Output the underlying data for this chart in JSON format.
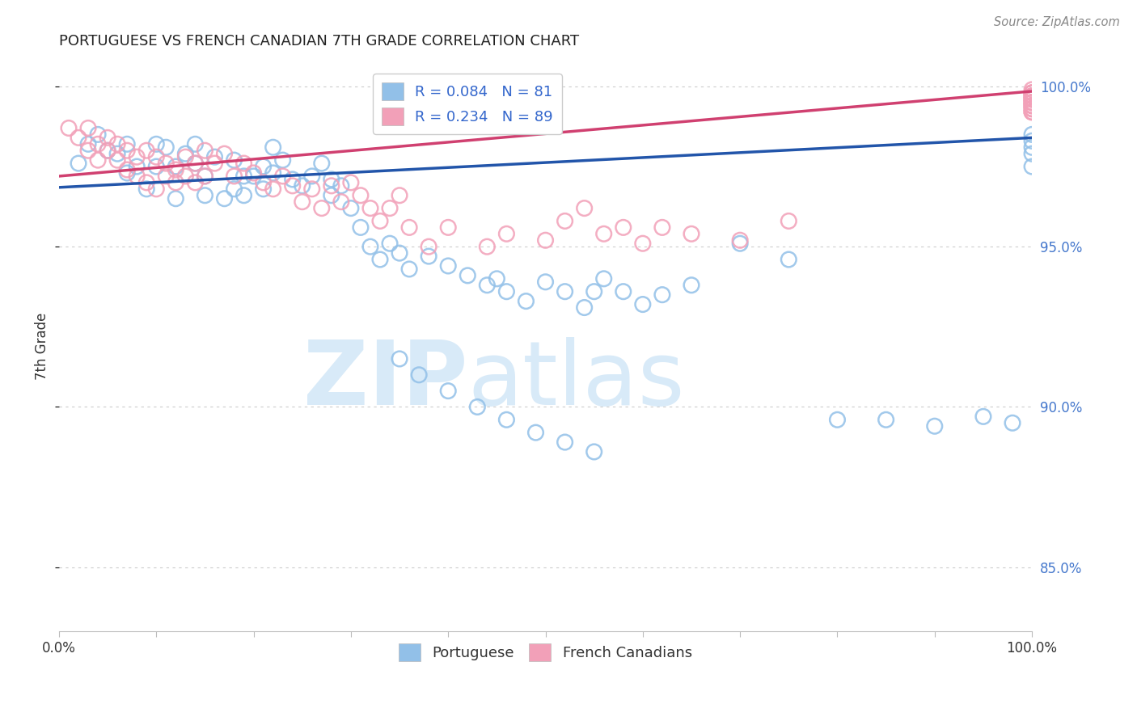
{
  "title": "PORTUGUESE VS FRENCH CANADIAN 7TH GRADE CORRELATION CHART",
  "source": "Source: ZipAtlas.com",
  "ylabel": "7th Grade",
  "xlim": [
    0.0,
    1.0
  ],
  "ylim": [
    0.83,
    1.008
  ],
  "legend_r_blue": "R = 0.084",
  "legend_n_blue": "N = 81",
  "legend_r_pink": "R = 0.234",
  "legend_n_pink": "N = 89",
  "blue_color": "#92C0E8",
  "pink_color": "#F2A0B8",
  "trend_blue": "#2255AA",
  "trend_pink": "#D04070",
  "watermark_zip": "ZIP",
  "watermark_atlas": "atlas",
  "watermark_color": "#D8EAF8",
  "blue_trend_x": [
    0.0,
    1.0
  ],
  "blue_trend_y": [
    0.9685,
    0.984
  ],
  "pink_trend_x": [
    0.0,
    1.0
  ],
  "pink_trend_y": [
    0.972,
    0.9985
  ],
  "blue_scatter_x": [
    0.02,
    0.03,
    0.04,
    0.05,
    0.06,
    0.07,
    0.07,
    0.08,
    0.09,
    0.1,
    0.1,
    0.11,
    0.12,
    0.12,
    0.13,
    0.14,
    0.14,
    0.15,
    0.15,
    0.16,
    0.17,
    0.18,
    0.18,
    0.19,
    0.19,
    0.2,
    0.21,
    0.21,
    0.22,
    0.22,
    0.23,
    0.24,
    0.25,
    0.26,
    0.27,
    0.28,
    0.28,
    0.29,
    0.3,
    0.31,
    0.32,
    0.33,
    0.34,
    0.35,
    0.36,
    0.38,
    0.4,
    0.42,
    0.44,
    0.45,
    0.46,
    0.48,
    0.5,
    0.52,
    0.54,
    0.55,
    0.56,
    0.58,
    0.6,
    0.62,
    0.65,
    0.7,
    0.75,
    0.8,
    0.85,
    0.9,
    0.95,
    0.98,
    1.0,
    1.0,
    1.0,
    1.0,
    1.0,
    0.35,
    0.37,
    0.4,
    0.43,
    0.46,
    0.49,
    0.52,
    0.55
  ],
  "blue_scatter_y": [
    0.976,
    0.982,
    0.985,
    0.98,
    0.979,
    0.973,
    0.982,
    0.975,
    0.968,
    0.975,
    0.982,
    0.981,
    0.965,
    0.975,
    0.979,
    0.976,
    0.982,
    0.972,
    0.966,
    0.978,
    0.965,
    0.968,
    0.977,
    0.972,
    0.966,
    0.972,
    0.975,
    0.968,
    0.973,
    0.981,
    0.977,
    0.971,
    0.969,
    0.972,
    0.976,
    0.971,
    0.966,
    0.969,
    0.962,
    0.956,
    0.95,
    0.946,
    0.951,
    0.948,
    0.943,
    0.947,
    0.944,
    0.941,
    0.938,
    0.94,
    0.936,
    0.933,
    0.939,
    0.936,
    0.931,
    0.936,
    0.94,
    0.936,
    0.932,
    0.935,
    0.938,
    0.951,
    0.946,
    0.896,
    0.896,
    0.894,
    0.897,
    0.895,
    0.975,
    0.979,
    0.981,
    0.983,
    0.985,
    0.915,
    0.91,
    0.905,
    0.9,
    0.896,
    0.892,
    0.889,
    0.886
  ],
  "pink_scatter_x": [
    0.01,
    0.02,
    0.03,
    0.03,
    0.04,
    0.04,
    0.05,
    0.05,
    0.06,
    0.06,
    0.07,
    0.07,
    0.08,
    0.08,
    0.09,
    0.09,
    0.1,
    0.1,
    0.11,
    0.11,
    0.12,
    0.12,
    0.13,
    0.13,
    0.14,
    0.14,
    0.15,
    0.15,
    0.16,
    0.17,
    0.18,
    0.19,
    0.2,
    0.21,
    0.22,
    0.23,
    0.24,
    0.25,
    0.26,
    0.27,
    0.28,
    0.29,
    0.3,
    0.31,
    0.32,
    0.33,
    0.34,
    0.35,
    0.36,
    0.38,
    0.4,
    0.44,
    0.46,
    0.5,
    0.52,
    0.54,
    0.56,
    0.58,
    0.6,
    0.62,
    0.65,
    0.7,
    0.75,
    1.0,
    1.0,
    1.0,
    1.0,
    1.0,
    1.0,
    1.0,
    1.0,
    1.0,
    1.0,
    1.0,
    1.0,
    1.0,
    1.0,
    1.0,
    1.0,
    1.0,
    1.0,
    1.0,
    1.0,
    1.0,
    1.0,
    1.0,
    1.0,
    1.0,
    1.0
  ],
  "pink_scatter_y": [
    0.987,
    0.984,
    0.987,
    0.98,
    0.982,
    0.977,
    0.984,
    0.98,
    0.982,
    0.977,
    0.98,
    0.974,
    0.978,
    0.972,
    0.98,
    0.97,
    0.978,
    0.968,
    0.976,
    0.972,
    0.974,
    0.97,
    0.972,
    0.978,
    0.976,
    0.97,
    0.98,
    0.972,
    0.976,
    0.979,
    0.972,
    0.976,
    0.973,
    0.97,
    0.968,
    0.972,
    0.969,
    0.964,
    0.968,
    0.962,
    0.969,
    0.964,
    0.97,
    0.966,
    0.962,
    0.958,
    0.962,
    0.966,
    0.956,
    0.95,
    0.956,
    0.95,
    0.954,
    0.952,
    0.958,
    0.962,
    0.954,
    0.956,
    0.951,
    0.956,
    0.954,
    0.952,
    0.958,
    0.999,
    0.997,
    0.995,
    0.993,
    0.992,
    0.998,
    0.996,
    0.994,
    0.992,
    0.997,
    0.995,
    0.993,
    0.996,
    0.998,
    0.994,
    0.992,
    0.996,
    0.997,
    0.995,
    0.993,
    0.994,
    0.996,
    0.997,
    0.998,
    0.995,
    0.994
  ]
}
